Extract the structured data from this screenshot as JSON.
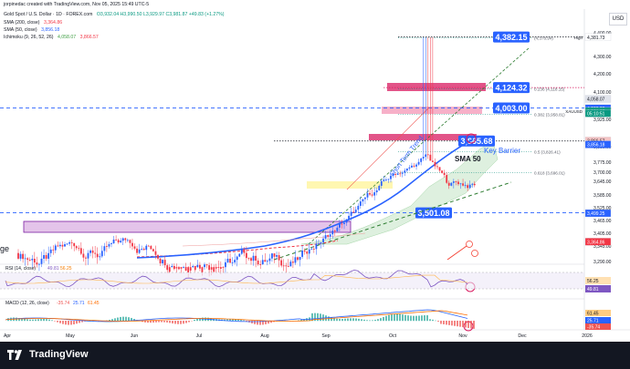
{
  "header": {
    "credit": "jorpinedac created with TradingView.com, Nov 05, 2025 15:49 UTC-5",
    "symbol": "Gold Spot / U.S. Dollar · 1D · FOREX.com",
    "ohlc": "O3,932.04 H3,990.50 L3,929.97 C3,981.87 +49.83 (+1.27%)",
    "sma200": "SMA (200, close)",
    "sma200_val": "3,364.86",
    "sma50": "SMA (50, close)",
    "sma50_val": "3,856.18",
    "ichimoku": "Ichimoku (9, 26, 52, 26)",
    "ichi_v1": "4,058.07",
    "ichi_v2": "3,866.57"
  },
  "currency": "USD",
  "footer": {
    "brand": "TradingView"
  },
  "chart_data": {
    "type": "candlestick",
    "x_months": [
      "Apr",
      "May",
      "Jun",
      "Jul",
      "Aug",
      "Sep",
      "Oct",
      "Nov",
      "Dec",
      "2026"
    ],
    "y_ticks": [
      "4,400.00",
      "4,300.00",
      "4,200.00",
      "4,100.00",
      "4,000.00",
      "3,925.00",
      "3,850.00",
      "3,775.00",
      "3,700.00",
      "3,645.00",
      "3,585.00",
      "3,525.00",
      "3,465.00",
      "3,405.00",
      "3,345.00",
      "3,290.00"
    ],
    "callouts": [
      {
        "label": "4,382.15",
        "y": 4382.15
      },
      {
        "label": "4,124.32",
        "y": 4124.32
      },
      {
        "label": "4,003.00",
        "y": 4003.0
      },
      {
        "label": "3,865.68",
        "y": 3865.68
      },
      {
        "label": "3,501.08",
        "y": 3501.08
      }
    ],
    "fib_levels": [
      {
        "label": "(4,378.94)",
        "y": 4378.94
      },
      {
        "label": "0.236 (4,118.15)",
        "y": 4118.15
      },
      {
        "label": "0.382 (3,958.81)",
        "y": 3958.81
      },
      {
        "label": "0.5 (3,826.41)",
        "y": 3826.41
      },
      {
        "label": "0.618 (3,696.01)",
        "y": 3696.01
      }
    ],
    "axis_badges": [
      {
        "label": "High",
        "text": "4,381.73",
        "y": 4381.73,
        "color": "#ffffff",
        "fg": "#131722"
      },
      {
        "label": "",
        "text": "4,058.07",
        "y": 4058.07,
        "color": "#e0e3eb",
        "fg": "#131722"
      },
      {
        "label": "",
        "text": "4,000.88",
        "y": 4000.88,
        "color": "#2962ff",
        "fg": "#ffffff"
      },
      {
        "label": "XAUUSD",
        "text": "3,981.87",
        "y": 3981.87,
        "color": "#089981",
        "fg": "#ffffff"
      },
      {
        "label": "",
        "text": "05:10:51",
        "y": 3966.0,
        "color": "#089981",
        "fg": "#ffffff"
      },
      {
        "label": "",
        "text": "3,866.57",
        "y": 3866.57,
        "color": "#f5c4c4",
        "fg": "#131722"
      },
      {
        "label": "",
        "text": "3,856.18",
        "y": 3856.18,
        "color": "#2962ff",
        "fg": "#ffffff"
      },
      {
        "label": "",
        "text": "3,499.25",
        "y": 3499.25,
        "color": "#2962ff",
        "fg": "#ffffff"
      },
      {
        "label": "",
        "text": "3,364.86",
        "y": 3364.86,
        "color": "#f23645",
        "fg": "#ffffff"
      }
    ],
    "annotations": [
      "Short Term Trend",
      "SMA 50",
      "Key Barrier",
      "ge"
    ],
    "rsi": {
      "label": "RSI (14, close)",
      "val1": "49.81",
      "val2": "56.25",
      "axis_a": "56.25",
      "axis_b": "49.81"
    },
    "macd": {
      "label": "MACD (12, 26, close)",
      "v1": "-35.74",
      "v2": "25.71",
      "v3": "61.45",
      "axis_a": "61.45",
      "axis_b": "25.71",
      "axis_c": "-35.74"
    },
    "colors": {
      "up": "#2962ff",
      "down": "#f23645",
      "sma50": "#2962ff",
      "trend": "#089981"
    }
  }
}
